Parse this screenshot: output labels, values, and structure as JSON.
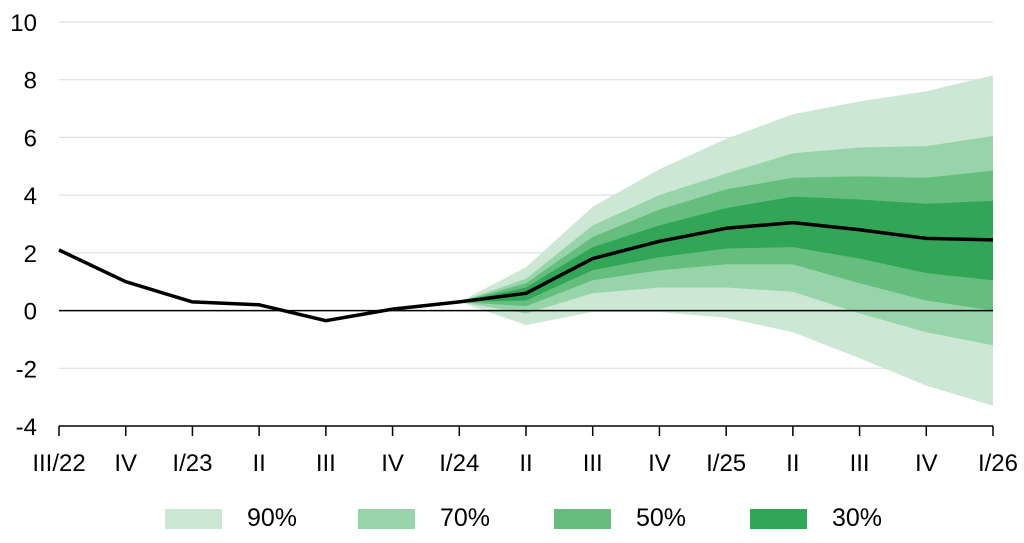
{
  "chart_data": {
    "type": "area",
    "title": "",
    "xlabel": "",
    "ylabel": "",
    "categories": [
      "III/22",
      "IV",
      "I/23",
      "II",
      "III",
      "IV",
      "I/24",
      "II",
      "III",
      "IV",
      "I/25",
      "II",
      "III",
      "IV",
      "I/26"
    ],
    "ylim": [
      -4,
      10
    ],
    "yticks": [
      -4,
      -2,
      0,
      2,
      4,
      6,
      8,
      10
    ],
    "grid": "horizontal",
    "legend_position": "bottom",
    "colors": {
      "band_90": "#cce8d4",
      "band_70": "#98d4a9",
      "band_50": "#65bd7e",
      "band_30": "#32a656",
      "line": "#000000",
      "zero_line": "#000000",
      "grid": "#d9d9d9"
    },
    "series": [
      {
        "name": "",
        "type": "line",
        "values": [
          2.1,
          1.0,
          0.3,
          0.2,
          -0.35,
          0.05,
          0.3,
          0.6,
          1.8,
          2.4,
          2.85,
          3.05,
          2.8,
          2.5,
          2.45
        ]
      }
    ],
    "fan_bands": [
      {
        "name": "90%",
        "lower": [
          null,
          null,
          null,
          null,
          null,
          null,
          0.3,
          -0.5,
          -0.05,
          -0.05,
          -0.25,
          -0.75,
          -1.65,
          -2.6,
          -3.3
        ],
        "upper": [
          null,
          null,
          null,
          null,
          null,
          null,
          0.3,
          1.5,
          3.6,
          4.9,
          5.95,
          6.8,
          7.25,
          7.6,
          8.15
        ]
      },
      {
        "name": "70%",
        "lower": [
          null,
          null,
          null,
          null,
          null,
          null,
          0.3,
          -0.1,
          0.6,
          0.8,
          0.8,
          0.65,
          -0.1,
          -0.75,
          -1.2
        ],
        "upper": [
          null,
          null,
          null,
          null,
          null,
          null,
          0.3,
          1.1,
          2.95,
          4.0,
          4.75,
          5.45,
          5.65,
          5.7,
          6.05
        ]
      },
      {
        "name": "50%",
        "lower": [
          null,
          null,
          null,
          null,
          null,
          null,
          0.3,
          0.15,
          1.05,
          1.4,
          1.6,
          1.6,
          0.95,
          0.35,
          0.0
        ]
      },
      {
        "name": "30%",
        "lower": [
          null,
          null,
          null,
          null,
          null,
          null,
          0.3,
          0.35,
          1.4,
          1.85,
          2.15,
          2.2,
          1.8,
          1.3,
          1.05
        ],
        "upper": [
          null,
          null,
          null,
          null,
          null,
          null,
          0.3,
          0.8,
          2.2,
          2.95,
          3.55,
          3.95,
          3.85,
          3.7,
          3.8
        ]
      }
    ],
    "fan_bands_50_upper": [
      null,
      null,
      null,
      null,
      null,
      null,
      0.3,
      0.95,
      2.55,
      3.5,
      4.2,
      4.6,
      4.65,
      4.6,
      4.85
    ]
  },
  "legend": {
    "items": [
      {
        "label": "90%",
        "color": "#cce8d4"
      },
      {
        "label": "70%",
        "color": "#98d4a9"
      },
      {
        "label": "50%",
        "color": "#65bd7e"
      },
      {
        "label": "30%",
        "color": "#32a656"
      }
    ]
  }
}
